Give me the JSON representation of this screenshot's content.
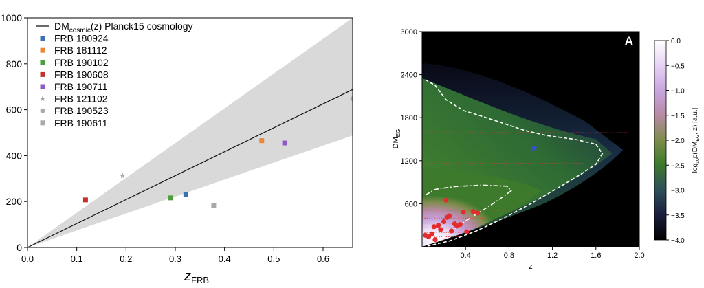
{
  "chart_data": [
    {
      "type": "scatter",
      "xlabel_base": "z",
      "xlabel_sub": "FRB",
      "ylabel": "",
      "xlim": [
        0.0,
        0.66
      ],
      "ylim": [
        0,
        1000
      ],
      "x_ticks": [
        "0.0",
        "0.1",
        "0.2",
        "0.3",
        "0.4",
        "0.5",
        "0.6"
      ],
      "x_tick_values": [
        0.0,
        0.1,
        0.2,
        0.3,
        0.4,
        0.5,
        0.6
      ],
      "y_ticks": [
        "0",
        "200",
        "400",
        "600",
        "800",
        "1000"
      ],
      "y_tick_values": [
        0,
        200,
        400,
        600,
        800,
        1000
      ],
      "grid": false,
      "legend_position": "top-left",
      "legend": [
        {
          "label": "FRB 180924",
          "marker": "square",
          "color": "#3c72b0"
        },
        {
          "label": "FRB 181112",
          "marker": "square",
          "color": "#e8873a"
        },
        {
          "label": "FRB 190102",
          "marker": "square",
          "color": "#4a9e3c"
        },
        {
          "label": "FRB 190608",
          "marker": "square",
          "color": "#c2332e"
        },
        {
          "label": "FRB 190711",
          "marker": "square",
          "color": "#8b5cc6"
        },
        {
          "label": "FRB 121102",
          "marker": "star",
          "color": "#a9a9a9"
        },
        {
          "label": "FRB 190523",
          "marker": "circle",
          "color": "#a9a9a9"
        },
        {
          "label": "FRB 190611",
          "marker": "square",
          "color": "#a9a9a9"
        }
      ],
      "line_legend": {
        "label_prefix": "DM",
        "label_sub": "cosmic",
        "label_suffix": "(z) Planck15 cosmology",
        "color": "#111111"
      },
      "line": {
        "x": [
          0.0,
          0.66
        ],
        "y": [
          0,
          688
        ]
      },
      "band": {
        "x": [
          0.0,
          0.66
        ],
        "upper": [
          0,
          1000
        ],
        "lower": [
          0,
          488
        ],
        "color": "#d9d9d9"
      },
      "points": [
        {
          "name": "FRB 180924",
          "x": 0.3214,
          "y": 231,
          "marker": "square",
          "color": "#3c72b0"
        },
        {
          "name": "FRB 181112",
          "x": 0.4755,
          "y": 465,
          "marker": "square",
          "color": "#e8873a"
        },
        {
          "name": "FRB 190102",
          "x": 0.291,
          "y": 216,
          "marker": "square",
          "color": "#4a9e3c"
        },
        {
          "name": "FRB 190608",
          "x": 0.1178,
          "y": 207,
          "marker": "square",
          "color": "#c2332e"
        },
        {
          "name": "FRB 190711",
          "x": 0.522,
          "y": 455,
          "marker": "square",
          "color": "#8b5cc6"
        },
        {
          "name": "FRB 121102",
          "x": 0.193,
          "y": 312,
          "marker": "star",
          "color": "#a9a9a9"
        },
        {
          "name": "FRB 190523",
          "x": 0.66,
          "y": 648,
          "marker": "circle",
          "color": "#a9a9a9"
        },
        {
          "name": "FRB 190611",
          "x": 0.378,
          "y": 182,
          "marker": "square",
          "color": "#a9a9a9"
        }
      ]
    },
    {
      "type": "heatmap",
      "panel_label": "A",
      "xlabel": "z",
      "ylabel_base": "DM",
      "ylabel_sub": "EG",
      "xlim": [
        0.0,
        2.0
      ],
      "ylim": [
        0,
        3000
      ],
      "x_ticks": [
        "0.4",
        "0.8",
        "1.2",
        "1.6",
        "2.0"
      ],
      "x_tick_values": [
        0.4,
        0.8,
        1.2,
        1.6,
        2.0
      ],
      "y_ticks": [
        "600",
        "1200",
        "1800",
        "2400",
        "3000"
      ],
      "y_tick_values": [
        600,
        1200,
        1800,
        2400,
        3000
      ],
      "colorbar": {
        "label_prefix": "log",
        "label_sub1": "10",
        "label_mid": "p(DM",
        "label_sub2": "EG",
        "label_suffix": ", z) [a.u.]",
        "range": [
          -4.0,
          0.0
        ],
        "ticks": [
          "0.0",
          "−0.5",
          "−1.0",
          "−1.5",
          "−2.0",
          "−2.5",
          "−3.0",
          "−3.5",
          "−4.0"
        ],
        "tick_values": [
          0.0,
          -0.5,
          -1.0,
          -1.5,
          -2.0,
          -2.5,
          -3.0,
          -3.5,
          -4.0
        ],
        "colors": [
          "#ffffff",
          "#e8d4f4",
          "#c7a6df",
          "#b98aa8",
          "#7e8c4c",
          "#3d7a2c",
          "#2d4f5a",
          "#1b1f3f",
          "#000000"
        ]
      },
      "star": {
        "x": 1.03,
        "y": 1375,
        "color": "#3a4fd6"
      },
      "red_points": [
        {
          "x": 0.03,
          "y": 160
        },
        {
          "x": 0.06,
          "y": 140
        },
        {
          "x": 0.09,
          "y": 180
        },
        {
          "x": 0.11,
          "y": 280
        },
        {
          "x": 0.12,
          "y": 100
        },
        {
          "x": 0.15,
          "y": 300
        },
        {
          "x": 0.17,
          "y": 240
        },
        {
          "x": 0.2,
          "y": 350
        },
        {
          "x": 0.23,
          "y": 410
        },
        {
          "x": 0.22,
          "y": 650
        },
        {
          "x": 0.25,
          "y": 430
        },
        {
          "x": 0.27,
          "y": 220
        },
        {
          "x": 0.3,
          "y": 320
        },
        {
          "x": 0.32,
          "y": 290
        },
        {
          "x": 0.35,
          "y": 310
        },
        {
          "x": 0.38,
          "y": 480
        },
        {
          "x": 0.41,
          "y": 210
        },
        {
          "x": 0.47,
          "y": 490
        },
        {
          "x": 0.51,
          "y": 470
        }
      ],
      "hlines": [
        {
          "y": 1590,
          "x_end": 1.9
        },
        {
          "y": 1160,
          "x_end": 1.5
        },
        {
          "y": 510,
          "x_end": 0.78
        },
        {
          "y": 400,
          "x_end": 0.6
        },
        {
          "y": 330,
          "x_end": 0.55
        },
        {
          "y": 265,
          "x_end": 0.48
        },
        {
          "y": 200,
          "x_end": 0.42
        },
        {
          "y": 140,
          "x_end": 0.36
        }
      ],
      "dashed_contour": [
        [
          0.03,
          2330
        ],
        [
          0.12,
          2250
        ],
        [
          0.22,
          2050
        ],
        [
          0.38,
          1900
        ],
        [
          0.55,
          1820
        ],
        [
          0.75,
          1720
        ],
        [
          0.95,
          1620
        ],
        [
          1.15,
          1550
        ],
        [
          1.4,
          1500
        ],
        [
          1.6,
          1430
        ],
        [
          1.66,
          1300
        ],
        [
          1.6,
          1150
        ],
        [
          1.45,
          1000
        ],
        [
          1.25,
          820
        ],
        [
          1.0,
          600
        ],
        [
          0.75,
          400
        ],
        [
          0.5,
          220
        ],
        [
          0.25,
          80
        ],
        [
          0.05,
          10
        ]
      ],
      "dashdot_contour": [
        [
          0.03,
          720
        ],
        [
          0.12,
          800
        ],
        [
          0.3,
          840
        ],
        [
          0.55,
          860
        ],
        [
          0.78,
          845
        ],
        [
          0.82,
          780
        ],
        [
          0.7,
          650
        ],
        [
          0.55,
          500
        ],
        [
          0.42,
          380
        ],
        [
          0.3,
          250
        ],
        [
          0.2,
          140
        ],
        [
          0.1,
          60
        ],
        [
          0.03,
          30
        ]
      ]
    }
  ]
}
